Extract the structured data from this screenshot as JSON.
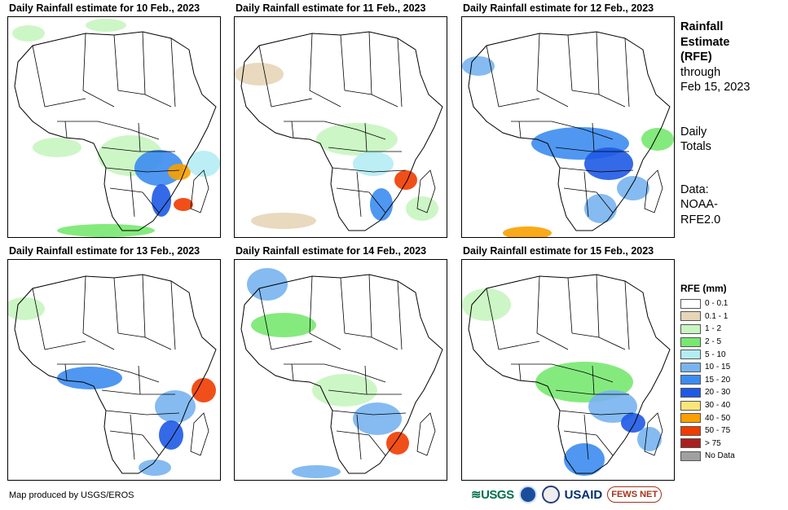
{
  "panels": [
    {
      "title": "Daily Rainfall estimate for 10 Feb., 2023"
    },
    {
      "title": "Daily Rainfall estimate for 11 Feb., 2023"
    },
    {
      "title": "Daily Rainfall estimate for 12 Feb., 2023"
    },
    {
      "title": "Daily Rainfall estimate for 13 Feb., 2023"
    },
    {
      "title": "Daily Rainfall estimate for 14 Feb., 2023"
    },
    {
      "title": "Daily Rainfall estimate for 15 Feb., 2023"
    }
  ],
  "sidebar": {
    "title_line1": "Rainfall",
    "title_line2": "Estimate",
    "title_line3": "(RFE)",
    "through": "through",
    "through_date": "Feb 15, 2023",
    "daily1": "Daily",
    "daily2": "Totals",
    "data1": "Data:",
    "data2": "NOAA-",
    "data3": "RFE2.0"
  },
  "legend": {
    "title": "RFE (mm)",
    "items": [
      {
        "label": "0 - 0.1",
        "color": "#ffffff"
      },
      {
        "label": "0.1 - 1",
        "color": "#e6d5b8"
      },
      {
        "label": "1 - 2",
        "color": "#c8f5c0"
      },
      {
        "label": "2 - 5",
        "color": "#78e870"
      },
      {
        "label": "5 - 10",
        "color": "#b4ecf4"
      },
      {
        "label": "10 - 15",
        "color": "#78b4f0"
      },
      {
        "label": "15 - 20",
        "color": "#3c8cf0"
      },
      {
        "label": "20 - 30",
        "color": "#1e5ae6"
      },
      {
        "label": "30 - 40",
        "color": "#fae678"
      },
      {
        "label": "40 - 50",
        "color": "#faa000"
      },
      {
        "label": "50 - 75",
        "color": "#f03c00"
      },
      {
        "label": "> 75",
        "color": "#aa1e1e"
      },
      {
        "label": "No Data",
        "color": "#a0a0a0"
      }
    ]
  },
  "credit": "Map produced by USGS/EROS",
  "logos": {
    "usgs": "≋USGS",
    "usaid": "USAID",
    "fews": "FEWS NET"
  }
}
